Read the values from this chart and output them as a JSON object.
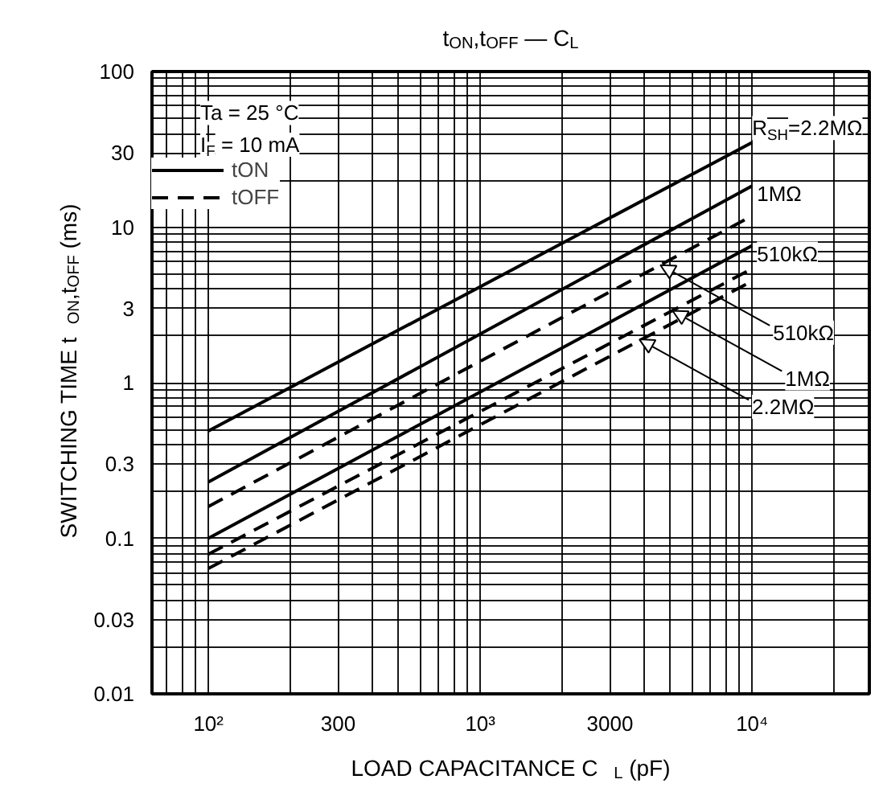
{
  "chart_data": {
    "type": "line",
    "title": "t$_{ON}$,t$_{OFF}$ — C$_{L}$",
    "xlabel": "LOAD CAPACITANCE   C$_{L}$ (pF)",
    "ylabel": "SWITCHING TIME   t$_{ON}$,t$_{OFF}$ (ms)",
    "log": "xy",
    "grid": true,
    "legend": "top left",
    "xlim": [
      62,
      27000
    ],
    "ylim": [
      0.01,
      100
    ],
    "xticks": [
      {
        "value": 70,
        "label": null
      },
      {
        "value": 80,
        "label": null
      },
      {
        "value": 90,
        "label": null
      },
      {
        "value": 100,
        "label": "10²"
      },
      {
        "value": 200,
        "label": null
      },
      300,
      {
        "value": 400,
        "label": null
      },
      {
        "value": 500,
        "label": null
      },
      {
        "value": 600,
        "label": null
      },
      {
        "value": 700,
        "label": null
      },
      {
        "value": 800,
        "label": null
      },
      {
        "value": 900,
        "label": null
      },
      {
        "value": 1000,
        "label": "10³"
      },
      {
        "value": 2000,
        "label": null
      },
      3000,
      {
        "value": 4000,
        "label": null
      },
      {
        "value": 5000,
        "label": null
      },
      {
        "value": 6000,
        "label": null
      },
      {
        "value": 7000,
        "label": null
      },
      {
        "value": 8000,
        "label": null
      },
      {
        "value": 9000,
        "label": null
      },
      {
        "value": 10000,
        "label": "10⁴"
      },
      {
        "value": 20000,
        "label": null
      }
    ],
    "yticks": [
      0.01,
      {
        "value": 0.02,
        "label": null
      },
      0.03,
      {
        "value": 0.04,
        "label": null
      },
      {
        "value": 0.05,
        "label": null
      },
      {
        "value": 0.06,
        "label": null
      },
      {
        "value": 0.07,
        "label": null
      },
      {
        "value": 0.08,
        "label": null
      },
      {
        "value": 0.09,
        "label": null
      },
      0.1,
      {
        "value": 0.2,
        "label": null
      },
      0.3,
      {
        "value": 0.4,
        "label": null
      },
      {
        "value": 0.5,
        "label": null
      },
      {
        "value": 0.6,
        "label": null
      },
      {
        "value": 0.7,
        "label": null
      },
      {
        "value": 0.8,
        "label": null
      },
      {
        "value": 0.9,
        "label": null
      },
      1,
      {
        "value": 2,
        "label": null
      },
      3,
      {
        "value": 4,
        "label": null
      },
      {
        "value": 5,
        "label": null
      },
      {
        "value": 6,
        "label": null
      },
      {
        "value": 7,
        "label": null
      },
      {
        "value": 8,
        "label": null
      },
      {
        "value": 9,
        "label": null
      },
      10,
      {
        "value": 20,
        "label": null
      },
      30,
      {
        "value": 40,
        "label": null
      },
      {
        "value": 50,
        "label": null
      },
      {
        "value": 60,
        "label": null
      },
      {
        "value": 70,
        "label": null
      },
      {
        "value": 80,
        "label": null
      },
      {
        "value": 90,
        "label": null
      },
      100
    ],
    "x": [
      100,
      10000
    ],
    "series": [
      {
        "name": "tON",
        "color": "#000000",
        "line_style": "solid",
        "values": [
          0.49,
          35
        ]
      },
      {
        "color": "#000000",
        "line_style": "solid",
        "values": [
          0.23,
          18.4
        ]
      },
      {
        "color": "#000000",
        "line_style": "solid",
        "values": [
          0.1,
          7.6
        ]
      },
      {
        "name": "tOFF",
        "color": "#000000",
        "line_style": "dashed",
        "values": [
          0.16,
          11.8
        ]
      },
      {
        "color": "#000000",
        "line_style": "dashed",
        "values": [
          0.079,
          5.4
        ]
      },
      {
        "color": "#000000",
        "line_style": "dashed",
        "values": [
          0.064,
          4.5
        ]
      }
    ],
    "annotations": [
      "Ta = 25 °C",
      "I$_{F}$ = 10 mA",
      {
        "text": "R$_{SH}$=2.2MΩ",
        "x": 10000,
        "y": 35
      },
      {
        "text": "1MΩ",
        "x": 10000,
        "y": 18.4
      },
      {
        "text": "510kΩ",
        "x": 10000,
        "y": 7.6
      },
      {
        "text": "510kΩ",
        "x": 4600,
        "y": 5.7
      },
      {
        "text": "1MΩ",
        "x": 5100,
        "y": 2.9
      },
      {
        "text": "2.2MΩ",
        "x": 3850,
        "y": 1.9
      }
    ]
  }
}
